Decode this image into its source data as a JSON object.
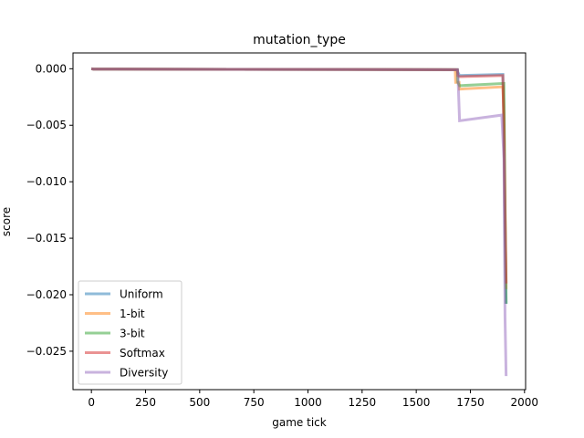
{
  "chart_data": {
    "type": "line",
    "title": "mutation_type",
    "xlabel": "game tick",
    "ylabel": "score",
    "xlim": [
      -85,
      2005
    ],
    "ylim": [
      -0.0284,
      0.0014
    ],
    "xticks": [
      0,
      250,
      500,
      750,
      1000,
      1250,
      1500,
      1750,
      2000
    ],
    "xtick_labels": [
      "0",
      "250",
      "500",
      "750",
      "1000",
      "1250",
      "1500",
      "1750",
      "2000"
    ],
    "yticks": [
      0.0,
      -0.005,
      -0.01,
      -0.015,
      -0.02,
      -0.025
    ],
    "ytick_labels": [
      "0.000",
      "−0.005",
      "−0.010",
      "−0.015",
      "−0.020",
      "−0.025"
    ],
    "legend_position": "lower-left",
    "grid": false,
    "series": [
      {
        "name": "Uniform",
        "color": "#1f77b4",
        "x": [
          0,
          10,
          1690,
          1692,
          1700,
          1900,
          1905,
          1910,
          1915
        ],
        "y": [
          0.0,
          -3e-05,
          -8e-05,
          -0.0003,
          -0.0006,
          -0.0005,
          -0.005,
          -0.015,
          -0.0208
        ]
      },
      {
        "name": "1-bit",
        "color": "#ff7f0e",
        "x": [
          0,
          10,
          1680,
          1682,
          1698,
          1700,
          1900,
          1905,
          1910,
          1915
        ],
        "y": [
          0.0,
          -3e-05,
          -8e-05,
          -0.0012,
          -0.0012,
          -0.0018,
          -0.0016,
          -0.004,
          -0.012,
          -0.0195
        ]
      },
      {
        "name": "3-bit",
        "color": "#2ca02c",
        "x": [
          0,
          10,
          1690,
          1692,
          1700,
          1905,
          1910,
          1915
        ],
        "y": [
          0.0,
          -3e-05,
          -8e-05,
          -0.0012,
          -0.0015,
          -0.0013,
          -0.012,
          -0.0208
        ]
      },
      {
        "name": "Softmax",
        "color": "#d62728",
        "x": [
          0,
          10,
          1690,
          1692,
          1700,
          1900,
          1905,
          1910,
          1915
        ],
        "y": [
          0.0,
          -3e-05,
          -8e-05,
          -0.0006,
          -0.0007,
          -0.0006,
          -0.006,
          -0.013,
          -0.019
        ]
      },
      {
        "name": "Diversity",
        "color": "#9467bd",
        "x": [
          0,
          10,
          1690,
          1692,
          1700,
          1895,
          1905,
          1910,
          1915
        ],
        "y": [
          0.0,
          -3e-05,
          -8e-05,
          -0.0003,
          -0.0046,
          -0.0041,
          -0.008,
          -0.022,
          -0.0272
        ]
      }
    ]
  }
}
